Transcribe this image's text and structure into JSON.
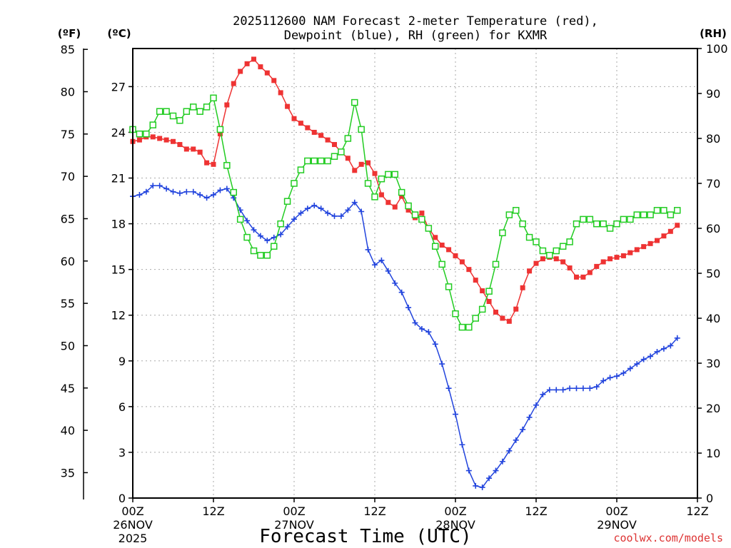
{
  "chart_data": {
    "type": "line",
    "title_line1": "2025112600 NAM Forecast 2-meter Temperature (red),",
    "title_line2": "Dewpoint (blue), RH (green) for KXMR",
    "xlabel": "Forecast Time (UTC)",
    "watermark": "coolwx.com/models",
    "left_axis_f": {
      "unit_label": "(ºF)",
      "ticks": [
        "85",
        "80",
        "75",
        "70",
        "65",
        "60",
        "55",
        "50",
        "45",
        "40",
        "35"
      ],
      "tick_values": [
        85,
        80,
        75,
        70,
        65,
        60,
        55,
        50,
        45,
        40,
        35
      ]
    },
    "left_axis_c": {
      "unit_label": "(ºC)",
      "ticks": [
        "27",
        "24",
        "21",
        "18",
        "15",
        "12",
        "9",
        "6",
        "3",
        "0"
      ],
      "tick_values": [
        27,
        24,
        21,
        18,
        15,
        12,
        9,
        6,
        3,
        0
      ],
      "ylim": [
        0,
        29.5
      ]
    },
    "right_axis_rh": {
      "unit_label": "(RH)",
      "ticks": [
        "100",
        "90",
        "80",
        "70",
        "60",
        "50",
        "40",
        "30",
        "20",
        "10",
        "0"
      ],
      "tick_values": [
        100,
        90,
        80,
        70,
        60,
        50,
        40,
        30,
        20,
        10,
        0
      ],
      "ylim": [
        0,
        100
      ]
    },
    "x_axis": {
      "xlim": [
        0,
        84
      ],
      "ticks": [
        {
          "hour": 0,
          "line1": "00Z",
          "line2": "26NOV",
          "line3": "2025"
        },
        {
          "hour": 12,
          "line1": "12Z",
          "line2": "",
          "line3": ""
        },
        {
          "hour": 24,
          "line1": "00Z",
          "line2": "27NOV",
          "line3": ""
        },
        {
          "hour": 36,
          "line1": "12Z",
          "line2": "",
          "line3": ""
        },
        {
          "hour": 48,
          "line1": "00Z",
          "line2": "28NOV",
          "line3": ""
        },
        {
          "hour": 60,
          "line1": "12Z",
          "line2": "",
          "line3": ""
        },
        {
          "hour": 72,
          "line1": "00Z",
          "line2": "29NOV",
          "line3": ""
        },
        {
          "hour": 84,
          "line1": "12Z",
          "line2": "",
          "line3": ""
        }
      ]
    },
    "series": [
      {
        "name": "Temperature",
        "unit": "C",
        "color": "#ee3333",
        "marker": "filled-square",
        "values": [
          23.4,
          23.5,
          23.7,
          23.7,
          23.6,
          23.5,
          23.4,
          23.2,
          22.9,
          22.9,
          22.7,
          22.0,
          21.9,
          23.9,
          25.8,
          27.2,
          28.0,
          28.5,
          28.8,
          28.3,
          27.9,
          27.4,
          26.6,
          25.7,
          24.9,
          24.6,
          24.3,
          24.0,
          23.8,
          23.5,
          23.2,
          22.7,
          22.3,
          21.5,
          21.9,
          22.0,
          21.3,
          19.9,
          19.4,
          19.1,
          19.8,
          18.9,
          18.4,
          18.7,
          17.7,
          17.1,
          16.6,
          16.3,
          15.9,
          15.5,
          15.0,
          14.3,
          13.6,
          12.9,
          12.2,
          11.8,
          11.6,
          12.4,
          13.8,
          14.9,
          15.4,
          15.7,
          15.8,
          15.7,
          15.5,
          15.1,
          14.5,
          14.5,
          14.8,
          15.2,
          15.5,
          15.7,
          15.8,
          15.9,
          16.1,
          16.3,
          16.5,
          16.7,
          16.9,
          17.2,
          17.5,
          17.9
        ]
      },
      {
        "name": "Dewpoint",
        "unit": "C",
        "color": "#2244dd",
        "marker": "plus",
        "values": [
          19.8,
          19.9,
          20.1,
          20.5,
          20.5,
          20.3,
          20.1,
          20.0,
          20.1,
          20.1,
          19.9,
          19.7,
          19.9,
          20.2,
          20.3,
          19.7,
          18.9,
          18.2,
          17.6,
          17.2,
          16.9,
          17.1,
          17.3,
          17.8,
          18.3,
          18.7,
          19.0,
          19.2,
          19.0,
          18.7,
          18.5,
          18.5,
          18.9,
          19.4,
          18.8,
          16.3,
          15.3,
          15.6,
          14.9,
          14.1,
          13.5,
          12.5,
          11.5,
          11.1,
          10.9,
          10.1,
          8.8,
          7.2,
          5.5,
          3.5,
          1.8,
          0.8,
          0.7,
          1.3,
          1.8,
          2.4,
          3.1,
          3.8,
          4.5,
          5.3,
          6.1,
          6.8,
          7.1,
          7.1,
          7.1,
          7.2,
          7.2,
          7.2,
          7.2,
          7.3,
          7.7,
          7.9,
          8.0,
          8.2,
          8.5,
          8.8,
          9.1,
          9.3,
          9.6,
          9.8,
          10.0,
          10.5
        ]
      },
      {
        "name": "RH",
        "unit": "%",
        "color": "#22cc22",
        "marker": "open-square",
        "values": [
          82,
          81,
          81,
          83,
          86,
          86,
          85,
          84,
          86,
          87,
          86,
          87,
          89,
          82,
          74,
          68,
          62,
          58,
          55,
          54,
          54,
          56,
          61,
          66,
          70,
          73,
          75,
          75,
          75,
          75,
          76,
          77,
          80,
          88,
          82,
          70,
          67,
          71,
          72,
          72,
          68,
          65,
          63,
          62,
          60,
          56,
          52,
          47,
          41,
          38,
          38,
          40,
          42,
          46,
          52,
          59,
          63,
          64,
          61,
          58,
          57,
          55,
          54,
          55,
          56,
          57,
          61,
          62,
          62,
          61,
          61,
          60,
          61,
          62,
          62,
          63,
          63,
          63,
          64,
          64,
          63,
          64
        ]
      }
    ]
  }
}
